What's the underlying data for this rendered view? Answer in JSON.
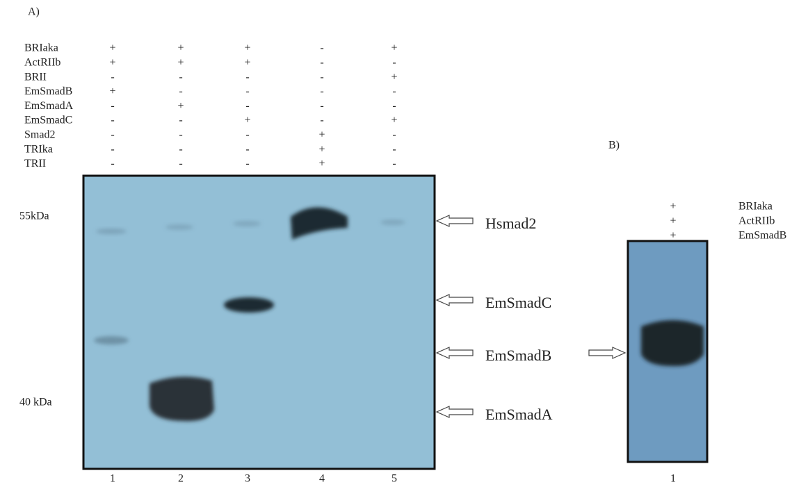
{
  "panel_a": {
    "label": "A)",
    "rows": [
      {
        "name": "BRIaka",
        "signs": [
          "+",
          "+",
          "+",
          "-",
          "+"
        ]
      },
      {
        "name": "ActRIIb",
        "signs": [
          "+",
          "+",
          "+",
          "-",
          "-"
        ]
      },
      {
        "name": "BRII",
        "signs": [
          "-",
          "-",
          "-",
          "-",
          "+"
        ]
      },
      {
        "name": "EmSmadB",
        "signs": [
          "+",
          "-",
          "-",
          "-",
          "-"
        ]
      },
      {
        "name": "EmSmadA",
        "signs": [
          "-",
          "+",
          "-",
          "-",
          "-"
        ]
      },
      {
        "name": "EmSmadC",
        "signs": [
          "-",
          "-",
          "+",
          "-",
          "+"
        ]
      },
      {
        "name": "Smad2",
        "signs": [
          "-",
          "-",
          "-",
          "+",
          "-"
        ]
      },
      {
        "name": "TRIka",
        "signs": [
          "-",
          "-",
          "-",
          "+",
          "-"
        ]
      },
      {
        "name": "TRII",
        "signs": [
          "-",
          "-",
          "-",
          "+",
          "-"
        ]
      }
    ],
    "markers": [
      "55kDa",
      "40 kDa"
    ],
    "bands": [
      "Hsmad2",
      "EmSmadC",
      "EmSmadB",
      "EmSmadA"
    ],
    "lanes": [
      "1",
      "2",
      "3",
      "4",
      "5"
    ]
  },
  "panel_b": {
    "label": "B)",
    "rows": [
      {
        "sign": "+",
        "name": "BRIaka"
      },
      {
        "sign": "+",
        "name": "ActRIIb"
      },
      {
        "sign": "+",
        "name": "EmSmadB"
      }
    ],
    "lanes": [
      "1"
    ]
  }
}
